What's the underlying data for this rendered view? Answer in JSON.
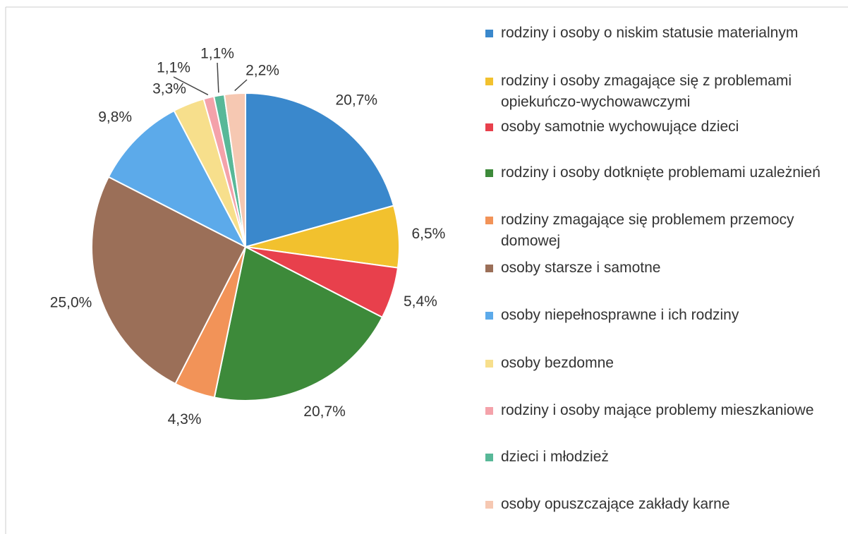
{
  "chart_data": {
    "type": "pie",
    "categories": [
      "rodziny i osoby o niskim statusie materialnym",
      "rodziny i osoby zmagające się z problemami opiekuńczo-wychowawczymi",
      "osoby samotnie wychowujące dzieci",
      "rodziny i osoby dotknięte problemami uzależnień",
      "rodziny zmagające się problemem przemocy domowej",
      "osoby starsze i samotne",
      "osoby niepełnosprawne i ich rodziny",
      "osoby bezdomne",
      "rodziny i osoby mające problemy mieszkaniowe",
      "dzieci i młodzież",
      "osoby opuszczające zakłady karne"
    ],
    "values": [
      20.7,
      6.5,
      5.4,
      20.7,
      4.3,
      25.0,
      9.8,
      3.3,
      1.1,
      1.1,
      2.2
    ],
    "value_labels": [
      "20,7%",
      "6,5%",
      "5,4%",
      "20,7%",
      "4,3%",
      "25,0%",
      "9,8%",
      "3,3%",
      "1,1%",
      "1,1%",
      "2,2%"
    ],
    "colors": [
      "#3a88cc",
      "#f2c12e",
      "#e8404c",
      "#3d8a3a",
      "#f29358",
      "#9b6f58",
      "#5caaea",
      "#f7df8c",
      "#f4a2aa",
      "#58b898",
      "#f6c8b2"
    ],
    "legend": "right"
  }
}
